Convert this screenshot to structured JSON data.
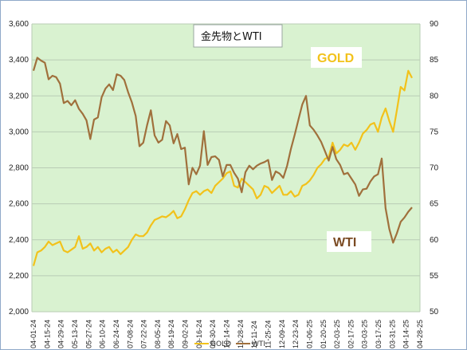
{
  "chart_data": {
    "type": "line",
    "title": "金先物とWTI",
    "plot_bg": "#d9f2d0",
    "grid": true,
    "x_labels": [
      "04-01-24",
      "04-15-24",
      "04-29-24",
      "05-13-24",
      "05-27-24",
      "06-10-24",
      "06-24-24",
      "07-08-24",
      "07-22-24",
      "08-05-24",
      "08-19-24",
      "09-02-24",
      "09-16-24",
      "09-30-24",
      "10-14-24",
      "10-28-24",
      "11-11-24",
      "11-25-24",
      "12-09-24",
      "12-23-24",
      "01-06-25",
      "01-20-25",
      "02-03-25",
      "02-17-25",
      "03-03-25",
      "03-17-25",
      "03-31-25",
      "04-14-25",
      "04-28-25"
    ],
    "y_left": {
      "min": 2000,
      "max": 3600,
      "step": 200
    },
    "y_right": {
      "min": 50,
      "max": 90,
      "step": 5
    },
    "series": [
      {
        "name": "GOLD",
        "axis": "left",
        "color": "#f2c21b",
        "label_color": "#f2c21b",
        "values": [
          2255,
          2330,
          2340,
          2360,
          2390,
          2370,
          2380,
          2390,
          2340,
          2330,
          2345,
          2360,
          2420,
          2350,
          2360,
          2380,
          2340,
          2360,
          2330,
          2350,
          2360,
          2330,
          2345,
          2320,
          2340,
          2360,
          2400,
          2430,
          2420,
          2420,
          2440,
          2480,
          2510,
          2520,
          2530,
          2525,
          2540,
          2560,
          2520,
          2530,
          2570,
          2620,
          2660,
          2670,
          2650,
          2670,
          2680,
          2660,
          2700,
          2720,
          2740,
          2770,
          2780,
          2700,
          2690,
          2740,
          2720,
          2700,
          2680,
          2630,
          2650,
          2700,
          2690,
          2660,
          2680,
          2700,
          2650,
          2650,
          2670,
          2640,
          2650,
          2700,
          2710,
          2730,
          2760,
          2800,
          2820,
          2850,
          2860,
          2940,
          2880,
          2900,
          2930,
          2920,
          2940,
          2900,
          2940,
          2990,
          3010,
          3040,
          3050,
          3000,
          3080,
          3130,
          3060,
          3000,
          3120,
          3250,
          3230,
          3340,
          3300
        ]
      },
      {
        "name": "WTI",
        "axis": "right",
        "color": "#a0703c",
        "label_color": "#7a4a22",
        "values": [
          83.5,
          85.3,
          84.9,
          84.6,
          82.3,
          82.8,
          82.6,
          81.7,
          79.0,
          79.3,
          78.7,
          79.4,
          78.2,
          77.5,
          76.6,
          74.0,
          76.7,
          77.0,
          79.8,
          81.0,
          81.6,
          80.8,
          83.0,
          82.8,
          82.2,
          80.5,
          79.1,
          77.2,
          73.0,
          73.5,
          75.9,
          78.0,
          74.5,
          73.5,
          73.9,
          76.5,
          75.9,
          73.4,
          74.7,
          72.6,
          72.8,
          67.7,
          70.0,
          69.1,
          70.3,
          75.1,
          70.4,
          71.5,
          71.6,
          71.1,
          68.8,
          70.4,
          70.4,
          69.3,
          68.5,
          66.6,
          69.4,
          70.3,
          69.8,
          70.3,
          70.6,
          70.8,
          71.1,
          68.3,
          69.5,
          69.2,
          68.6,
          70.3,
          72.6,
          74.6,
          76.7,
          78.8,
          80.0,
          75.9,
          75.3,
          74.5,
          73.6,
          72.3,
          71.0,
          72.9,
          71.2,
          70.4,
          69.1,
          69.3,
          68.5,
          67.7,
          66.1,
          67.0,
          67.1,
          68.1,
          68.8,
          69.1,
          71.3,
          64.4,
          61.5,
          59.6,
          60.9,
          62.5,
          63.1,
          63.9,
          64.5
        ]
      }
    ]
  }
}
